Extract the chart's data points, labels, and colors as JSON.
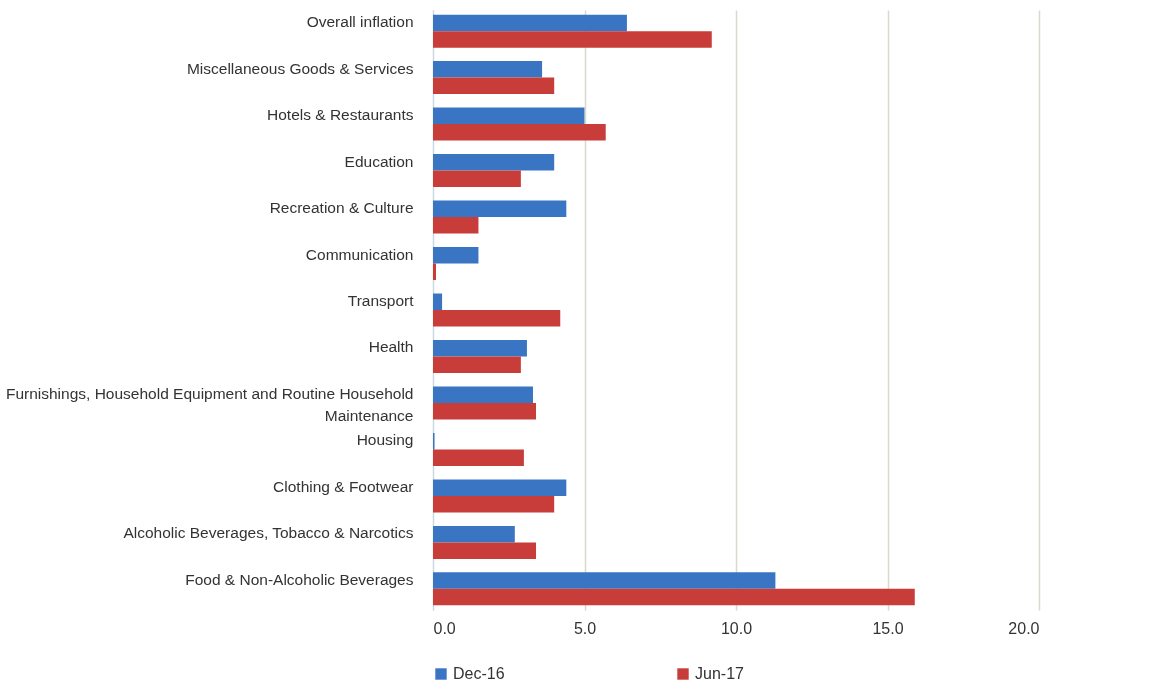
{
  "chart_data": {
    "type": "bar",
    "orientation": "horizontal",
    "categories": [
      "Overall inflation",
      "Miscellaneous Goods & Services",
      "Hotels & Restaurants",
      "Education",
      "Recreation & Culture",
      "Communication",
      "Transport",
      "Health",
      "Furnishings, Household Equipment and Routine Household Maintenance",
      "Housing",
      "Clothing & Footwear",
      "Alcoholic Beverages, Tobacco & Narcotics",
      "Food & Non-Alcoholic Beverages"
    ],
    "series": [
      {
        "name": "Dec-16",
        "color": "#3a75c4",
        "values": [
          6.4,
          3.6,
          5.0,
          4.0,
          4.4,
          1.5,
          0.3,
          3.1,
          3.3,
          0.05,
          4.4,
          2.7,
          11.3
        ]
      },
      {
        "name": "Jun-17",
        "color": "#c83c3a",
        "values": [
          9.2,
          4.0,
          5.7,
          2.9,
          1.5,
          0.1,
          4.2,
          2.9,
          3.4,
          3.0,
          4.0,
          3.4,
          15.9
        ]
      }
    ],
    "xlim": [
      0,
      20
    ],
    "xticks": [
      {
        "value": 0,
        "label": "0.0"
      },
      {
        "value": 5,
        "label": "5.0"
      },
      {
        "value": 10,
        "label": "10.0"
      },
      {
        "value": 15,
        "label": "15.0"
      },
      {
        "value": 20,
        "label": "20.0"
      }
    ],
    "grid": "x",
    "legend": "bottom"
  }
}
